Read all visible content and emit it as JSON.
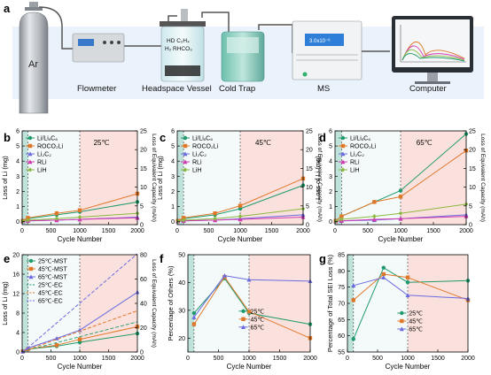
{
  "figure": {
    "panel_labels": [
      "a",
      "b",
      "c",
      "d",
      "e",
      "f",
      "g"
    ]
  },
  "schematic": {
    "gas_label": "Ar",
    "flowmeter_label": "Flowmeter",
    "vessel_label": "Headspace Vessel",
    "vessel_text": [
      "HD C₂H₄",
      "H₂ RHCO₃"
    ],
    "trap_label": "Cold Trap",
    "ms_label": "MS",
    "ms_screen_text": "3.0x10⁻⁶",
    "computer_label": "Computer"
  },
  "colors": {
    "li_lic6": "#1f9a6c",
    "roco2li": "#e0782a",
    "li2c2": "#6b6be0",
    "rli": "#d23ab0",
    "lih": "#8ab840",
    "t25": "#1f9a6c",
    "t45": "#e0782a",
    "t65": "#6b6be0",
    "shade_green": "#bfe3da",
    "shade_white": "#f4faf9",
    "shade_pink": "#fbe1dd"
  },
  "chart_data": [
    {
      "type": "line",
      "panel": "b",
      "annotation": "25℃",
      "xlabel": "Cycle Number",
      "ylabel": "Loss of Li (mg)",
      "y2label": "Loss of Equivalent Capacity (mAh)",
      "xlim": [
        0,
        2000
      ],
      "ylim": [
        -0.2,
        6
      ],
      "y2lim": [
        0,
        25
      ],
      "xticks": [
        0,
        500,
        1000,
        1500,
        2000
      ],
      "yticks": [
        0,
        1,
        2,
        3,
        4,
        5,
        6
      ],
      "y2ticks": [
        0,
        5,
        10,
        15,
        20,
        25
      ],
      "legend": [
        "Li/LiₓC₆",
        "ROCO₂Li",
        "Li₂C₂",
        "RLi",
        "LiH"
      ],
      "series": [
        {
          "name": "Li/LiₓC₆",
          "x": [
            10,
            100,
            600,
            1000,
            2000
          ],
          "y": [
            0.05,
            0.2,
            0.45,
            0.65,
            1.3
          ]
        },
        {
          "name": "ROCO₂Li",
          "x": [
            10,
            100,
            600,
            1000,
            2000
          ],
          "y": [
            0.05,
            0.25,
            0.55,
            0.75,
            1.85
          ]
        },
        {
          "name": "Li₂C₂",
          "x": [
            10,
            100,
            600,
            1000,
            2000
          ],
          "y": [
            0.02,
            0.05,
            0.1,
            0.15,
            0.3
          ]
        },
        {
          "name": "RLi",
          "x": [
            10,
            100,
            600,
            1000,
            2000
          ],
          "y": [
            0.02,
            0.05,
            0.1,
            0.15,
            0.25
          ]
        },
        {
          "name": "LiH",
          "x": [
            10,
            100,
            600,
            1000,
            2000
          ],
          "y": [
            0.02,
            0.1,
            0.2,
            0.3,
            0.55
          ]
        }
      ]
    },
    {
      "type": "line",
      "panel": "c",
      "annotation": "45℃",
      "xlabel": "Cycle Number",
      "ylabel": "Loss of Li (mg)",
      "y2label": "Loss of Equivalent Capacity (mAh)",
      "xlim": [
        0,
        2000
      ],
      "ylim": [
        -0.2,
        6
      ],
      "y2lim": [
        0,
        25
      ],
      "xticks": [
        0,
        500,
        1000,
        1500,
        2000
      ],
      "yticks": [
        0,
        1,
        2,
        3,
        4,
        5,
        6
      ],
      "y2ticks": [
        0,
        5,
        10,
        15,
        20,
        25
      ],
      "legend": [
        "Li/LiₓC₆",
        "ROCO₂Li",
        "Li₂C₂",
        "RLi",
        "LiH"
      ],
      "series": [
        {
          "name": "Li/LiₓC₆",
          "x": [
            10,
            100,
            600,
            1000,
            2000
          ],
          "y": [
            0.05,
            0.2,
            0.45,
            0.85,
            2.4
          ]
        },
        {
          "name": "ROCO₂Li",
          "x": [
            10,
            100,
            600,
            1000,
            2000
          ],
          "y": [
            0.05,
            0.25,
            0.55,
            1.05,
            2.85
          ]
        },
        {
          "name": "Li₂C₂",
          "x": [
            10,
            100,
            600,
            1000,
            2000
          ],
          "y": [
            0.02,
            0.05,
            0.1,
            0.2,
            0.45
          ]
        },
        {
          "name": "RLi",
          "x": [
            10,
            100,
            600,
            1000,
            2000
          ],
          "y": [
            0.02,
            0.05,
            0.1,
            0.15,
            0.3
          ]
        },
        {
          "name": "LiH",
          "x": [
            10,
            100,
            600,
            1000,
            2000
          ],
          "y": [
            0.02,
            0.1,
            0.2,
            0.35,
            0.85
          ]
        }
      ]
    },
    {
      "type": "line",
      "panel": "d",
      "annotation": "65℃",
      "xlabel": "Cycle Number",
      "ylabel": "Loss of Li (mg)",
      "y2label": "Loss of Equivalent Capacity (mAh)",
      "xlim": [
        0,
        2000
      ],
      "ylim": [
        -0.2,
        6
      ],
      "y2lim": [
        0,
        25
      ],
      "xticks": [
        0,
        500,
        1000,
        1500,
        2000
      ],
      "yticks": [
        0,
        1,
        2,
        3,
        4,
        5,
        6
      ],
      "y2ticks": [
        0,
        5,
        10,
        15,
        20,
        25
      ],
      "legend": [
        "Li/LiₓC₆",
        "ROCO₂Li",
        "Li₂C₂",
        "RLi",
        "LiH"
      ],
      "series": [
        {
          "name": "Li/LiₓC₆",
          "x": [
            10,
            100,
            600,
            1000,
            2000
          ],
          "y": [
            0.05,
            0.35,
            1.3,
            2.05,
            5.8
          ]
        },
        {
          "name": "ROCO₂Li",
          "x": [
            10,
            100,
            600,
            1000,
            2000
          ],
          "y": [
            0.05,
            0.35,
            1.3,
            1.65,
            4.7
          ]
        },
        {
          "name": "Li₂C₂",
          "x": [
            10,
            100,
            600,
            1000,
            2000
          ],
          "y": [
            0.02,
            0.05,
            0.1,
            0.2,
            0.45
          ]
        },
        {
          "name": "RLi",
          "x": [
            10,
            100,
            600,
            1000,
            2000
          ],
          "y": [
            0.02,
            0.05,
            0.15,
            0.2,
            0.35
          ]
        },
        {
          "name": "LiH",
          "x": [
            10,
            100,
            600,
            1000,
            2000
          ],
          "y": [
            0.02,
            0.15,
            0.35,
            0.55,
            1.15
          ]
        }
      ]
    },
    {
      "type": "line",
      "panel": "e",
      "xlabel": "Cycle Number",
      "ylabel": "Loss of Li (mg)",
      "y2label": "Loss of Equivalent Capacity (mAh)",
      "xlim": [
        0,
        2000
      ],
      "ylim": [
        0,
        20
      ],
      "y2lim": [
        0,
        80
      ],
      "xticks": [
        0,
        500,
        1000,
        1500,
        2000
      ],
      "yticks": [
        0,
        4,
        8,
        12,
        16,
        20
      ],
      "y2ticks": [
        0,
        20,
        40,
        60,
        80
      ],
      "legend": [
        "25℃-MST",
        "45℃-MST",
        "65℃-MST",
        "25℃-EC",
        "45℃-EC",
        "65℃-EC"
      ],
      "series": [
        {
          "name": "25℃-MST",
          "x": [
            10,
            100,
            600,
            1000,
            2000
          ],
          "y": [
            0.1,
            0.6,
            1.2,
            2.0,
            3.8
          ],
          "dash": false
        },
        {
          "name": "45℃-MST",
          "x": [
            10,
            100,
            600,
            1000,
            2000
          ],
          "y": [
            0.1,
            0.6,
            1.4,
            2.6,
            5.2
          ],
          "dash": false
        },
        {
          "name": "65℃-MST",
          "x": [
            10,
            100,
            600,
            1000,
            2000
          ],
          "y": [
            0.1,
            0.8,
            2.8,
            4.5,
            12.3
          ],
          "dash": false
        },
        {
          "name": "25℃-EC",
          "x": [
            10,
            100,
            2000
          ],
          "y": [
            0.1,
            0.4,
            6.2
          ],
          "dash": true
        },
        {
          "name": "45℃-EC",
          "x": [
            10,
            100,
            2000
          ],
          "y": [
            0.1,
            0.5,
            8.5
          ],
          "dash": true
        },
        {
          "name": "65℃-EC",
          "x": [
            10,
            100,
            2000
          ],
          "y": [
            0.1,
            0.9,
            20.2
          ],
          "dash": true
        }
      ]
    },
    {
      "type": "line",
      "panel": "f",
      "xlabel": "Cycle Number",
      "ylabel": "Percentage of Others (%)",
      "xlim": [
        0,
        2000
      ],
      "ylim": [
        15,
        50
      ],
      "xticks": [
        0,
        500,
        1000,
        1500,
        2000
      ],
      "yticks": [
        20,
        30,
        40,
        50
      ],
      "legend": [
        "25℃",
        "45℃",
        "65℃"
      ],
      "series": [
        {
          "name": "25℃",
          "x": [
            100,
            600,
            1000,
            2000
          ],
          "y": [
            29,
            41.5,
            29,
            25
          ]
        },
        {
          "name": "45℃",
          "x": [
            100,
            600,
            1000,
            2000
          ],
          "y": [
            25,
            42,
            29.5,
            20
          ]
        },
        {
          "name": "65℃",
          "x": [
            100,
            600,
            1000,
            2000
          ],
          "y": [
            27.5,
            42.5,
            41,
            40.5
          ]
        }
      ]
    },
    {
      "type": "line",
      "panel": "g",
      "xlabel": "Cycle Number",
      "ylabel": "Percentage of Total SEI Loss (%)",
      "xlim": [
        0,
        2000
      ],
      "ylim": [
        55,
        85
      ],
      "xticks": [
        0,
        500,
        1000,
        1500,
        2000
      ],
      "yticks": [
        55,
        60,
        65,
        70,
        75,
        80,
        85
      ],
      "legend": [
        "25℃",
        "45℃",
        "65℃"
      ],
      "series": [
        {
          "name": "25℃",
          "x": [
            100,
            600,
            1000,
            2000
          ],
          "y": [
            59,
            81,
            76.5,
            77
          ]
        },
        {
          "name": "45℃",
          "x": [
            100,
            600,
            1000,
            2000
          ],
          "y": [
            71,
            79,
            78,
            71
          ]
        },
        {
          "name": "65℃",
          "x": [
            100,
            600,
            1000,
            2000
          ],
          "y": [
            75.5,
            78,
            72.5,
            71.5
          ]
        }
      ]
    }
  ]
}
